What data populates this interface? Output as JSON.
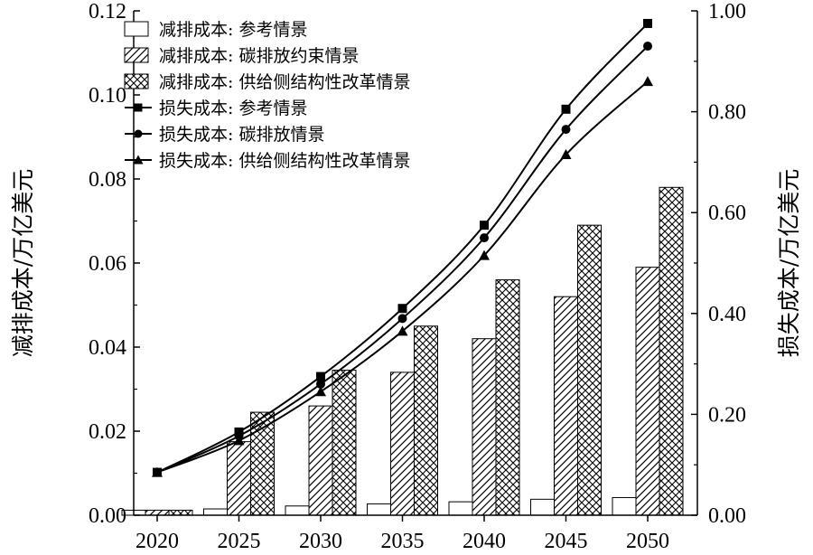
{
  "chart_data": {
    "type": "bar",
    "categories": [
      "2020",
      "2025",
      "2030",
      "2035",
      "2040",
      "2045",
      "2050"
    ],
    "y_left": {
      "label": "减排成本/万亿美元",
      "ylim": [
        0,
        0.12
      ],
      "ticks": [
        "0.00",
        "0.02",
        "0.04",
        "0.06",
        "0.08",
        "0.10",
        "0.12"
      ]
    },
    "y_right": {
      "label": "损失成本/万亿美元",
      "ylim": [
        0,
        1.0
      ],
      "ticks": [
        "0.00",
        "0.20",
        "0.40",
        "0.60",
        "0.80",
        "1.00"
      ]
    },
    "bar_series": [
      {
        "name": "减排成本: 参考情景",
        "pattern": "none",
        "values": [
          0.0012,
          0.0015,
          0.0022,
          0.0027,
          0.0032,
          0.0038,
          0.0042
        ]
      },
      {
        "name": "减排成本: 碳排放约束情景",
        "pattern": "diagonal",
        "values": [
          0.0012,
          0.0175,
          0.026,
          0.034,
          0.042,
          0.052,
          0.059
        ]
      },
      {
        "name": "减排成本: 供给侧结构性改革情景",
        "pattern": "crosshatch",
        "values": [
          0.0012,
          0.0245,
          0.0345,
          0.045,
          0.056,
          0.069,
          0.078
        ]
      }
    ],
    "line_series": [
      {
        "name": "损失成本: 参考情景",
        "marker": "square",
        "values": [
          0.085,
          0.165,
          0.275,
          0.41,
          0.575,
          0.805,
          0.975
        ]
      },
      {
        "name": "损失成本: 碳排放情景",
        "marker": "circle",
        "values": [
          0.085,
          0.157,
          0.26,
          0.39,
          0.55,
          0.765,
          0.93
        ]
      },
      {
        "name": "损失成本: 供给侧结构性改革情景",
        "marker": "triangle",
        "values": [
          0.085,
          0.148,
          0.245,
          0.365,
          0.515,
          0.715,
          0.86
        ]
      }
    ],
    "legend_position": "top-left",
    "grid": false
  }
}
